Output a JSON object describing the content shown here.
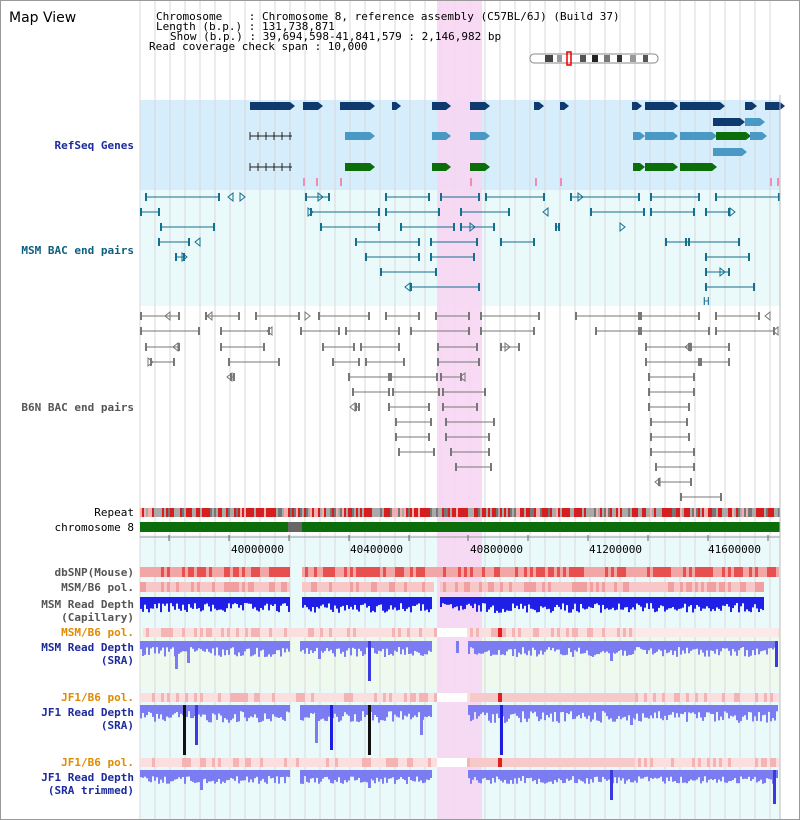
{
  "title": "Map View",
  "info": {
    "chromosome": "Chromosome    : Chromosome 8, reference assembly (C57BL/6J) (Build 37)",
    "length": "Length (b.p.) : 131,738,871",
    "show": "Show (b.p.) : 39,694,598-41,841,579 : 2,146,982 bp",
    "coverage": "Read coverage check span : 10,000"
  },
  "tracks": {
    "refseq": "RefSeq Genes",
    "msm_bac": "MSM BAC end pairs",
    "b6n_bac": "B6N BAC end pairs",
    "repeat": "Repeat",
    "chromosome": "chromosome 8",
    "dbsnp": "dbSNP(Mouse)",
    "msm_b6_pol_1": "MSM/B6 pol.",
    "msm_read_cap_1": "MSM Read Depth",
    "msm_read_cap_2": "(Capillary)",
    "msm_b6_pol_2": "MSM/B6 pol.",
    "msm_read_sra_1": "MSM Read Depth",
    "msm_read_sra_2": "(SRA)",
    "jf1_b6_pol_1": "JF1/B6 pol.",
    "jf1_read_sra_1": "JF1 Read Depth",
    "jf1_read_sra_2": "(SRA)",
    "jf1_b6_pol_2": "JF1/B6 pol.",
    "jf1_read_trim_1": "JF1 Read Depth",
    "jf1_read_trim_2": "(SRA trimmed)"
  },
  "axis": {
    "ticks": [
      "40000000",
      "40400000",
      "40800000",
      "41200000",
      "41600000"
    ]
  },
  "colors": {
    "refseq_bg": "#d6edfb",
    "bac_bg": "#eafafb",
    "highlight": "#f7d6f3",
    "gene_navy": "#0f3a6e",
    "gene_blue": "#4a98c4",
    "gene_green": "#0b6e0b",
    "msm_pair": "#156f8e",
    "b6n_pair": "#777777",
    "chrom_green": "#0b6e0b",
    "depth_blue": "#2020e0",
    "depth_light": "#7c7cf2",
    "snp_red": "#e85050"
  }
}
